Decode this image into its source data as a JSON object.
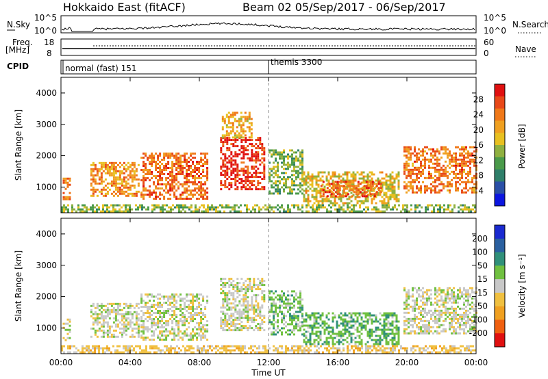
{
  "header": {
    "title": "Hokkaido East (fitACF)",
    "subtitle": "Beam 02  05/Sep/2017 - 06/Sep/2017"
  },
  "strip": {
    "nsky_label": "N.Sky",
    "nsky_ticks": [
      "10^5",
      "10^0"
    ],
    "nsky_right_ticks": [
      "10^5",
      "10^0"
    ],
    "nsearch_label": "N.Search",
    "freq_label": "Freq.",
    "freq_unit": "[MHz]",
    "freq_ticks": [
      "18",
      "8"
    ],
    "nave_ticks": [
      "60",
      "0"
    ],
    "nave_label": "Nave",
    "cpid_label": "CPID",
    "cpid_segments": [
      {
        "name": "normal (fast) 151",
        "start_hour": 0
      },
      {
        "name": "themis 3300",
        "start_hour": 12
      }
    ]
  },
  "axes": {
    "xlabel": "Time UT",
    "x_ticks": [
      "00:00",
      "04:00",
      "08:00",
      "12:00",
      "16:00",
      "20:00",
      "00:00"
    ],
    "ylabel": "Slant Range [km]",
    "y_ticks": [
      "1000",
      "2000",
      "3000",
      "4000"
    ]
  },
  "chart_data": [
    {
      "type": "heatmap",
      "panel": "power",
      "x_range_hours": [
        0,
        24
      ],
      "ylim": [
        180,
        4500
      ],
      "colorbar": {
        "label": "Power [dB]",
        "ticks": [
          "4",
          "8",
          "12",
          "16",
          "20",
          "24",
          "28"
        ],
        "range": [
          0,
          32
        ],
        "colors": [
          "#0c16e0",
          "#2a4fa6",
          "#2f7f6a",
          "#4a9a4a",
          "#8fb040",
          "#e8c020",
          "#f0a020",
          "#f07818",
          "#e84818",
          "#e01010"
        ]
      },
      "regions": [
        {
          "t": [
            0.1,
            0.5
          ],
          "r": [
            600,
            1300
          ],
          "level": 24
        },
        {
          "t": [
            1.7,
            4.5
          ],
          "r": [
            700,
            1800
          ],
          "level": 22
        },
        {
          "t": [
            4.6,
            8.5
          ],
          "r": [
            650,
            2100
          ],
          "level": 25
        },
        {
          "t": [
            9.2,
            11.8
          ],
          "r": [
            900,
            2600
          ],
          "level": 29
        },
        {
          "t": [
            9.3,
            11.0
          ],
          "r": [
            2600,
            3400
          ],
          "level": 20
        },
        {
          "t": [
            12.0,
            14.0
          ],
          "r": [
            800,
            2200
          ],
          "level": 13
        },
        {
          "t": [
            14.0,
            19.5
          ],
          "r": [
            500,
            1500
          ],
          "level": 18
        },
        {
          "t": [
            15.0,
            18.5
          ],
          "r": [
            700,
            1200
          ],
          "level": 26
        },
        {
          "t": [
            19.8,
            24.0
          ],
          "r": [
            800,
            2300
          ],
          "level": 24
        },
        {
          "t": [
            0.0,
            24.0
          ],
          "r": [
            200,
            450
          ],
          "level": 14
        }
      ]
    },
    {
      "type": "heatmap",
      "panel": "velocity",
      "x_range_hours": [
        0,
        24
      ],
      "ylim": [
        180,
        4500
      ],
      "colorbar": {
        "label": "Velocity [m s⁻¹]",
        "ticks": [
          "200",
          "100",
          "50",
          "15",
          "-15",
          "-50",
          "-100",
          "-200"
        ],
        "range": [
          -250,
          250
        ],
        "colors": [
          "#1a2ad0",
          "#2a60a0",
          "#30907a",
          "#70c040",
          "#c8c8c8",
          "#f0c040",
          "#f0a020",
          "#f06010",
          "#e01010"
        ]
      },
      "regions": [
        {
          "t": [
            0.1,
            0.5
          ],
          "r": [
            600,
            1300
          ],
          "velocity": 0
        },
        {
          "t": [
            1.7,
            4.5
          ],
          "r": [
            700,
            1800
          ],
          "velocity": 0
        },
        {
          "t": [
            4.6,
            8.5
          ],
          "r": [
            650,
            2100
          ],
          "velocity": 0
        },
        {
          "t": [
            9.2,
            11.8
          ],
          "r": [
            900,
            2600
          ],
          "velocity": 0
        },
        {
          "t": [
            12.0,
            14.0
          ],
          "r": [
            800,
            2200
          ],
          "velocity": 30
        },
        {
          "t": [
            14.0,
            19.5
          ],
          "r": [
            500,
            1500
          ],
          "velocity": 40
        },
        {
          "t": [
            19.8,
            24.0
          ],
          "r": [
            800,
            2300
          ],
          "velocity": 0
        },
        {
          "t": [
            0.0,
            24.0
          ],
          "r": [
            200,
            450
          ],
          "velocity": -30
        }
      ]
    }
  ]
}
